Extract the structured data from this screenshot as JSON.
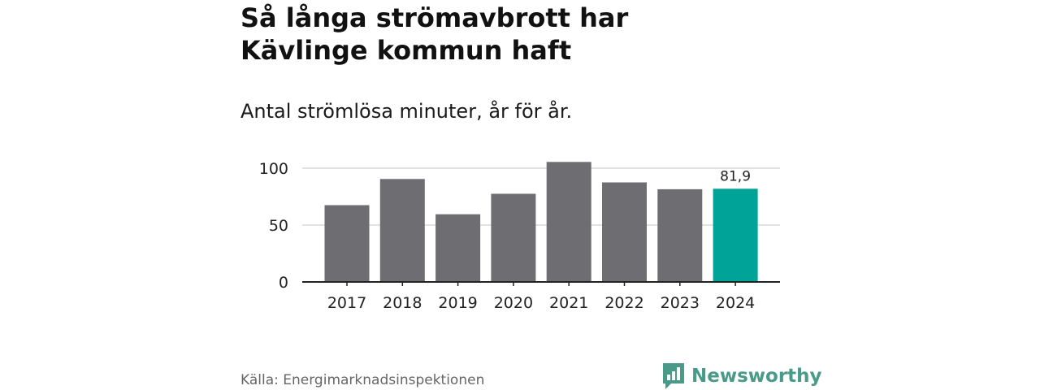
{
  "title": "Så långa strömavbrott har Kävlinge kommun haft",
  "subtitle": "Antal strömlösa minuter, år för år.",
  "source": "Källa: Energimarknadsinspektionen",
  "brand": {
    "name": "Newsworthy",
    "icon": "newsworthy-logo-icon",
    "color": "#4a9a8a"
  },
  "colors": {
    "bar": "#6e6d72",
    "highlight": "#00a398",
    "grid": "#d9d9d9",
    "axis": "#222222"
  },
  "chart_data": {
    "type": "bar",
    "title": "Så långa strömavbrott har Kävlinge kommun haft",
    "subtitle": "Antal strömlösa minuter, år för år.",
    "xlabel": "",
    "ylabel": "",
    "categories": [
      "2017",
      "2018",
      "2019",
      "2020",
      "2021",
      "2022",
      "2023",
      "2024"
    ],
    "values": [
      67.5,
      90.5,
      59.5,
      77.5,
      105.5,
      87.5,
      81.5,
      81.9
    ],
    "highlight_index": 7,
    "data_labels": [
      {
        "index": 7,
        "text": "81,9"
      }
    ],
    "ylim": [
      0,
      100
    ],
    "yticks": [
      0,
      50,
      100
    ],
    "grid": true,
    "legend": "none"
  }
}
